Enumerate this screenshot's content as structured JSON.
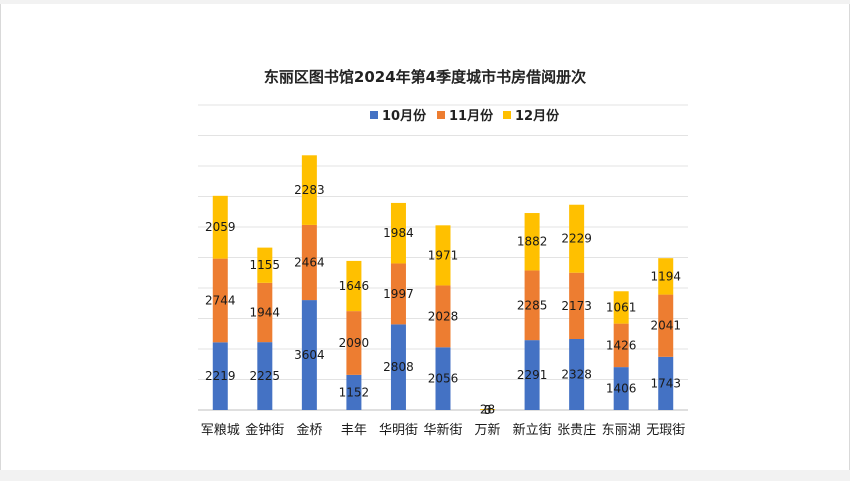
{
  "chart_data": {
    "type": "bar",
    "stacked": true,
    "title": "东丽区图书馆2024年第4季度城市书房借阅册次",
    "xlabel": "",
    "ylabel": "",
    "ylim": [
      0,
      10000
    ],
    "grid": true,
    "legend_position": "top",
    "categories": [
      "军粮城",
      "金钟街",
      "金桥",
      "丰年",
      "华明街",
      "华新街",
      "万新",
      "新立街",
      "张贵庄",
      "东丽湖",
      "无瑕街"
    ],
    "series": [
      {
        "name": "10月份",
        "color": "#4472c4",
        "values": [
          2219,
          2225,
          3604,
          1152,
          2808,
          2056,
          0,
          2291,
          2328,
          1406,
          1743
        ]
      },
      {
        "name": "11月份",
        "color": "#ed7d31",
        "values": [
          2744,
          1944,
          2464,
          2090,
          1997,
          2028,
          3,
          2285,
          2173,
          1426,
          2041
        ]
      },
      {
        "name": "12月份",
        "color": "#ffc000",
        "values": [
          2059,
          1155,
          2283,
          1646,
          1984,
          1971,
          28,
          1882,
          2229,
          1061,
          1194
        ]
      }
    ]
  }
}
